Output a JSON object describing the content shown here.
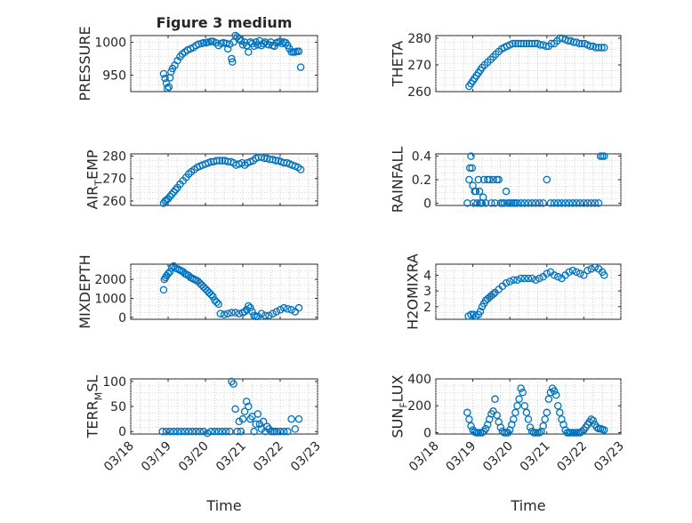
{
  "chart_data": {
    "type": "scatter",
    "title": "Figure 3 medium",
    "xlabel": "Time",
    "x_ticks": [
      "03/18",
      "03/19",
      "03/20",
      "03/21",
      "03/22",
      "03/23"
    ],
    "xlim": [
      0,
      5
    ],
    "marker": "circle",
    "color": "#0072BD",
    "panels": [
      {
        "name": "PRESSURE",
        "ylabel": "PRESSURE",
        "ylabel_sub": "",
        "ylim": [
          925,
          1010
        ],
        "yticks": [
          950,
          1000
        ],
        "ytick_labels": [
          "950",
          "1000"
        ],
        "x": [
          0.88,
          0.92,
          0.95,
          0.98,
          1.02,
          1.05,
          1.08,
          1.12,
          1.18,
          1.25,
          1.32,
          1.38,
          1.45,
          1.52,
          1.6,
          1.68,
          1.75,
          1.82,
          1.9,
          1.95,
          2.02,
          2.08,
          2.15,
          2.2,
          2.28,
          2.35,
          2.42,
          2.48,
          2.55,
          2.6,
          2.65,
          2.7,
          2.72,
          2.75,
          2.8,
          2.85,
          2.9,
          2.95,
          3.0,
          3.05,
          3.1,
          3.15,
          3.2,
          3.25,
          3.3,
          3.35,
          3.4,
          3.45,
          3.5,
          3.55,
          3.6,
          3.65,
          3.7,
          3.75,
          3.8,
          3.85,
          3.9,
          3.95,
          4.0,
          4.05,
          4.1,
          4.15,
          4.2,
          4.25,
          4.3,
          4.35,
          4.4,
          4.45,
          4.5,
          4.55
        ],
        "y": [
          952,
          945,
          938,
          930,
          932,
          946,
          955,
          960,
          965,
          972,
          978,
          982,
          985,
          988,
          990,
          992,
          995,
          997,
          998,
          999,
          999,
          1000,
          1001,
          1001,
          999,
          995,
          998,
          999,
          998,
          990,
          997,
          975,
          970,
          1000,
          1010,
          1008,
          1005,
          1002,
          996,
          1000,
          995,
          985,
          1000,
          998,
          994,
          1000,
          996,
          1002,
          995,
          998,
          1000,
          997,
          996,
          1000,
          995,
          994,
          999,
          1000,
          1001,
          998,
          1000,
          999,
          995,
          990,
          985,
          985,
          985,
          986,
          986,
          962
        ]
      },
      {
        "name": "THETA",
        "ylabel": "THETA",
        "ylabel_sub": "",
        "ylim": [
          260,
          281
        ],
        "yticks": [
          260,
          270,
          280
        ],
        "ytick_labels": [
          "260",
          "270",
          "280"
        ],
        "x": [
          0.9,
          0.95,
          1.0,
          1.05,
          1.1,
          1.15,
          1.2,
          1.25,
          1.32,
          1.4,
          1.48,
          1.55,
          1.62,
          1.7,
          1.78,
          1.85,
          1.92,
          2.0,
          2.08,
          2.15,
          2.22,
          2.3,
          2.38,
          2.45,
          2.52,
          2.6,
          2.68,
          2.75,
          2.82,
          2.9,
          2.98,
          3.05,
          3.12,
          3.2,
          3.28,
          3.35,
          3.42,
          3.5,
          3.58,
          3.65,
          3.72,
          3.8,
          3.88,
          3.95,
          4.02,
          4.1,
          4.18,
          4.25,
          4.32,
          4.4,
          4.48,
          4.55
        ],
        "y": [
          262,
          263,
          264,
          265,
          266,
          267,
          268,
          269,
          270,
          271,
          272,
          273,
          274,
          275,
          276,
          276.5,
          277,
          277.5,
          278,
          278,
          278,
          278,
          278,
          278,
          278,
          278,
          278,
          278,
          277.5,
          277.5,
          277,
          277,
          278,
          278,
          279,
          280,
          280,
          279.5,
          279,
          279,
          278.5,
          278.5,
          278,
          278,
          278,
          277.5,
          277,
          277,
          276.5,
          276.5,
          276.5,
          276.5
        ]
      },
      {
        "name": "AIR_TEMP",
        "ylabel": "AIR",
        "ylabel_sub": "T",
        "ylabel_tail": "EMP",
        "ylim": [
          258,
          281
        ],
        "yticks": [
          260,
          270,
          280
        ],
        "ytick_labels": [
          "260",
          "270",
          "280"
        ],
        "x": [
          0.88,
          0.92,
          0.96,
          1.0,
          1.05,
          1.1,
          1.15,
          1.2,
          1.25,
          1.32,
          1.4,
          1.48,
          1.55,
          1.62,
          1.7,
          1.78,
          1.85,
          1.92,
          2.0,
          2.08,
          2.15,
          2.22,
          2.3,
          2.38,
          2.45,
          2.52,
          2.6,
          2.68,
          2.75,
          2.82,
          2.9,
          2.98,
          3.05,
          3.12,
          3.2,
          3.28,
          3.35,
          3.42,
          3.5,
          3.58,
          3.65,
          3.72,
          3.8,
          3.88,
          3.95,
          4.02,
          4.1,
          4.18,
          4.25,
          4.32,
          4.4,
          4.48,
          4.55
        ],
        "y": [
          259,
          260,
          260.5,
          261,
          262,
          263,
          264,
          265,
          266,
          267.5,
          269,
          270.5,
          272,
          273,
          274,
          275,
          275.5,
          276,
          276.5,
          277,
          277.5,
          277.5,
          278,
          278,
          278,
          278,
          277.5,
          277.5,
          277,
          276,
          276.5,
          277,
          276,
          277,
          277.5,
          278,
          279,
          279.5,
          279.5,
          279,
          279,
          278.5,
          278.5,
          278,
          278,
          277.5,
          277,
          277,
          276.5,
          276,
          275.5,
          275,
          274
        ]
      },
      {
        "name": "RAINFALL",
        "ylabel": "RAINFALL",
        "ylabel_sub": "",
        "ylim": [
          -0.02,
          0.42
        ],
        "yticks": [
          0,
          0.2,
          0.4
        ],
        "ytick_labels": [
          "0",
          "0.2",
          "0.4"
        ],
        "x": [
          0.85,
          0.9,
          0.92,
          0.95,
          0.98,
          1.0,
          1.02,
          1.05,
          1.08,
          1.12,
          1.15,
          1.18,
          1.2,
          1.22,
          1.25,
          1.28,
          1.3,
          1.35,
          1.4,
          1.45,
          1.5,
          1.55,
          1.6,
          1.65,
          1.7,
          1.75,
          1.8,
          1.85,
          1.9,
          1.95,
          2.0,
          2.05,
          2.1,
          2.15,
          2.2,
          2.3,
          2.4,
          2.5,
          2.6,
          2.7,
          2.8,
          2.9,
          3.0,
          3.1,
          3.2,
          3.3,
          3.4,
          3.5,
          3.6,
          3.7,
          3.8,
          3.9,
          4.0,
          4.1,
          4.2,
          4.3,
          4.4,
          4.45,
          4.5,
          4.55
        ],
        "y": [
          0,
          0.2,
          0.3,
          0.4,
          0.3,
          0.15,
          0,
          0.1,
          0.1,
          0,
          0.2,
          0.1,
          0,
          0,
          0,
          0.05,
          0.2,
          0,
          0.2,
          0.2,
          0,
          0.2,
          0,
          0.2,
          0.2,
          0,
          0,
          0,
          0.1,
          0,
          0,
          0,
          0,
          0,
          0,
          0,
          0,
          0,
          0,
          0,
          0,
          0,
          0.2,
          0,
          0,
          0,
          0,
          0,
          0,
          0,
          0,
          0,
          0,
          0,
          0,
          0,
          0,
          0.4,
          0.4,
          0.4
        ]
      },
      {
        "name": "MIXDEPTH",
        "ylabel": "MIXDEPTH",
        "ylabel_sub": "",
        "ylim": [
          -100,
          2800
        ],
        "yticks": [
          0,
          1000,
          2000
        ],
        "ytick_labels": [
          "0",
          "1000",
          "2000"
        ],
        "x": [
          0.88,
          0.9,
          0.93,
          0.96,
          1.0,
          1.05,
          1.1,
          1.15,
          1.2,
          1.25,
          1.3,
          1.35,
          1.4,
          1.45,
          1.5,
          1.55,
          1.6,
          1.65,
          1.7,
          1.75,
          1.8,
          1.85,
          1.9,
          1.95,
          2.0,
          2.05,
          2.1,
          2.15,
          2.2,
          2.25,
          2.3,
          2.35,
          2.4,
          2.5,
          2.6,
          2.7,
          2.8,
          2.9,
          3.0,
          3.05,
          3.1,
          3.15,
          3.2,
          3.25,
          3.3,
          3.35,
          3.4,
          3.5,
          3.6,
          3.7,
          3.8,
          3.9,
          4.0,
          4.1,
          4.2,
          4.3,
          4.4,
          4.5
        ],
        "y": [
          1450,
          2000,
          2100,
          2200,
          2300,
          2400,
          2600,
          2700,
          2600,
          2550,
          2500,
          2450,
          2400,
          2300,
          2250,
          2200,
          2100,
          2050,
          2000,
          1950,
          1900,
          1800,
          1700,
          1600,
          1500,
          1400,
          1300,
          1200,
          1100,
          900,
          800,
          700,
          200,
          150,
          200,
          250,
          250,
          200,
          250,
          300,
          400,
          600,
          500,
          300,
          100,
          50,
          50,
          200,
          100,
          100,
          200,
          300,
          400,
          500,
          450,
          400,
          300,
          500
        ]
      },
      {
        "name": "H2OMIXRA",
        "ylabel": "H2OMIXRA",
        "ylabel_sub": "",
        "ylim": [
          1.2,
          4.7
        ],
        "yticks": [
          2,
          3,
          4
        ],
        "ytick_labels": [
          "2",
          "3",
          "4"
        ],
        "x": [
          0.88,
          0.95,
          1.02,
          1.08,
          1.15,
          1.2,
          1.25,
          1.3,
          1.35,
          1.4,
          1.45,
          1.5,
          1.55,
          1.6,
          1.7,
          1.8,
          1.9,
          2.0,
          2.1,
          2.2,
          2.3,
          2.4,
          2.5,
          2.6,
          2.7,
          2.8,
          2.9,
          3.0,
          3.1,
          3.2,
          3.3,
          3.4,
          3.5,
          3.6,
          3.7,
          3.8,
          3.9,
          4.0,
          4.1,
          4.2,
          4.3,
          4.4,
          4.5,
          4.55
        ],
        "y": [
          1.4,
          1.5,
          1.5,
          1.4,
          1.5,
          1.7,
          2.0,
          2.2,
          2.4,
          2.5,
          2.6,
          2.7,
          2.8,
          2.9,
          3.1,
          3.3,
          3.5,
          3.6,
          3.7,
          3.7,
          3.8,
          3.8,
          3.8,
          3.8,
          3.7,
          3.8,
          3.9,
          4.1,
          4.2,
          4.0,
          3.9,
          3.8,
          4.0,
          4.2,
          4.3,
          4.2,
          4.1,
          4.0,
          4.3,
          4.4,
          4.5,
          4.4,
          4.2,
          4.0
        ]
      },
      {
        "name": "TERR_MSL",
        "ylabel": "TERR",
        "ylabel_sub": "M",
        "ylabel_tail": "SL",
        "ylim": [
          -5,
          105
        ],
        "yticks": [
          0,
          50,
          100
        ],
        "ytick_labels": [
          "0",
          "50",
          "100"
        ],
        "x": [
          0.85,
          0.95,
          1.05,
          1.15,
          1.25,
          1.35,
          1.45,
          1.55,
          1.65,
          1.75,
          1.85,
          1.95,
          2.05,
          2.15,
          2.25,
          2.35,
          2.45,
          2.55,
          2.65,
          2.7,
          2.75,
          2.8,
          2.85,
          2.9,
          2.95,
          3.0,
          3.05,
          3.1,
          3.15,
          3.2,
          3.25,
          3.3,
          3.35,
          3.4,
          3.45,
          3.5,
          3.55,
          3.6,
          3.65,
          3.7,
          3.75,
          3.8,
          3.85,
          3.9,
          4.0,
          4.1,
          4.2,
          4.3,
          4.4,
          4.5
        ],
        "y": [
          0,
          0,
          0,
          0,
          0,
          0,
          0,
          0,
          0,
          0,
          0,
          0,
          -3,
          0,
          0,
          0,
          0,
          0,
          0,
          100,
          95,
          45,
          0,
          20,
          0,
          25,
          40,
          60,
          50,
          25,
          30,
          0,
          15,
          35,
          15,
          5,
          20,
          0,
          10,
          5,
          0,
          0,
          0,
          0,
          0,
          0,
          0,
          25,
          5,
          25
        ]
      },
      {
        "name": "SUN_FLUX",
        "ylabel": "SUN",
        "ylabel_sub": "F",
        "ylabel_tail": "LUX",
        "ylim": [
          -10,
          400
        ],
        "yticks": [
          0,
          200,
          400
        ],
        "ytick_labels": [
          "0",
          "200",
          "400"
        ],
        "x": [
          0.85,
          0.9,
          0.95,
          1.0,
          1.05,
          1.1,
          1.15,
          1.2,
          1.25,
          1.3,
          1.35,
          1.4,
          1.45,
          1.5,
          1.55,
          1.6,
          1.65,
          1.7,
          1.75,
          1.8,
          1.85,
          1.9,
          1.95,
          2.0,
          2.05,
          2.1,
          2.15,
          2.2,
          2.25,
          2.3,
          2.35,
          2.4,
          2.45,
          2.5,
          2.55,
          2.6,
          2.65,
          2.7,
          2.75,
          2.8,
          2.85,
          2.9,
          2.95,
          3.0,
          3.05,
          3.1,
          3.15,
          3.2,
          3.25,
          3.3,
          3.35,
          3.4,
          3.45,
          3.5,
          3.55,
          3.6,
          3.65,
          3.7,
          3.75,
          3.8,
          3.85,
          3.9,
          3.95,
          4.0,
          4.05,
          4.1,
          4.15,
          4.2,
          4.25,
          4.3,
          4.35,
          4.4,
          4.45,
          4.5,
          4.55
        ],
        "y": [
          150,
          100,
          50,
          20,
          5,
          0,
          0,
          0,
          0,
          10,
          30,
          60,
          100,
          140,
          160,
          250,
          130,
          80,
          40,
          10,
          0,
          0,
          0,
          20,
          60,
          100,
          150,
          200,
          250,
          330,
          300,
          200,
          150,
          100,
          40,
          10,
          0,
          0,
          0,
          0,
          10,
          50,
          100,
          150,
          250,
          300,
          330,
          310,
          280,
          200,
          150,
          100,
          60,
          20,
          0,
          0,
          0,
          0,
          0,
          0,
          0,
          0,
          10,
          20,
          40,
          60,
          80,
          100,
          90,
          60,
          40,
          30,
          30,
          25,
          20
        ]
      }
    ]
  }
}
